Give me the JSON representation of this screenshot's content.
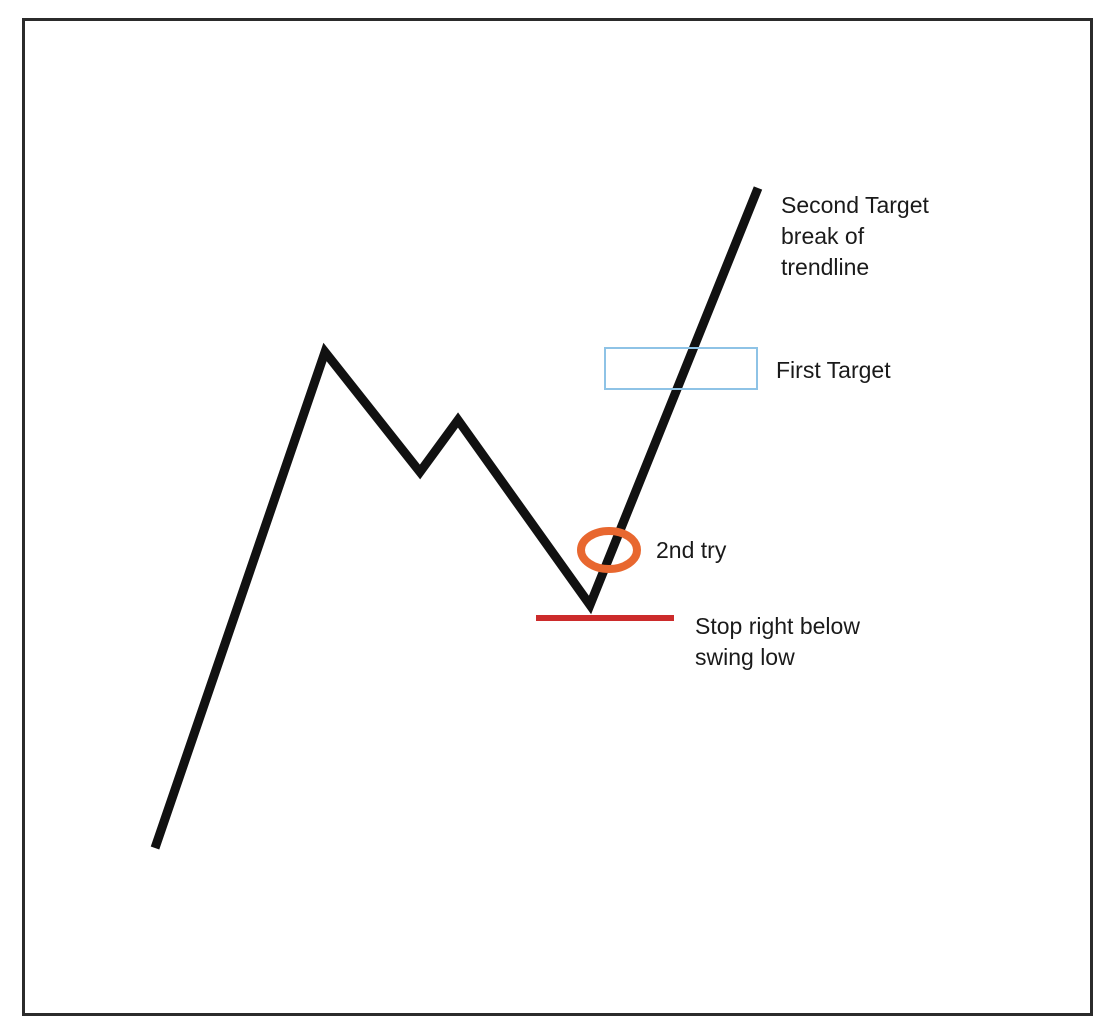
{
  "labels": {
    "second_target": [
      "Second Target",
      "break of",
      "trendline"
    ],
    "first_target": "First Target",
    "second_try": "2nd try",
    "stop": [
      "Stop right below",
      "swing low"
    ]
  },
  "colors": {
    "price_line": "#111111",
    "first_target_box": "#8ec3e6",
    "second_try_ring": "#e8672f",
    "stop_line": "#cc2b2b",
    "frame": "#2b2b2b"
  }
}
